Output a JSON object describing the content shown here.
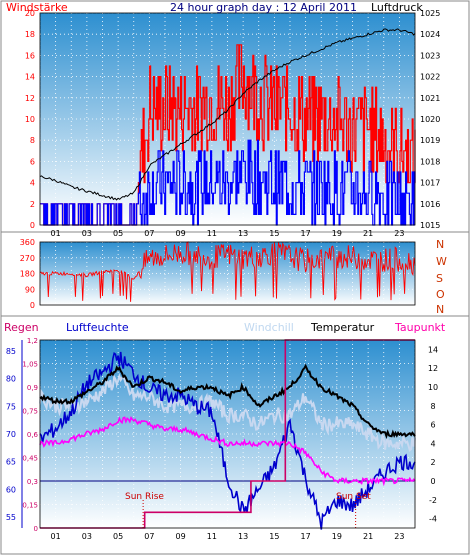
{
  "panel_top": {
    "title": "24 hour graph day : 12 April 2011",
    "left_label": "Windstärke",
    "right_label": "Luftdruck",
    "left_ticks": [
      "0",
      "2",
      "4",
      "6",
      "8",
      "10",
      "12",
      "14",
      "16",
      "18",
      "20"
    ],
    "right_ticks": [
      "1015",
      "1016",
      "1017",
      "1018",
      "1019",
      "1020",
      "1021",
      "1022",
      "1023",
      "1024",
      "1025"
    ]
  },
  "panel_mid": {
    "left_ticks": [
      "0",
      "90",
      "180",
      "270",
      "360"
    ],
    "direction_letters": [
      "N",
      "W",
      "S",
      "O",
      "N"
    ]
  },
  "panel_bottom": {
    "labels": {
      "regen": "Regen",
      "luftfeuchte": "Luftfeuchte",
      "windchill": "Windchill",
      "temperatur": "Temperatur",
      "taupunkt": "Taupunkt"
    },
    "humidity_ticks": [
      "55",
      "60",
      "65",
      "70",
      "75",
      "80",
      "85"
    ],
    "rain_ticks": [
      "0",
      "0,15",
      "0,3",
      "0,45",
      "0,6",
      "0,75",
      "0,9",
      "1,05",
      "1,2"
    ],
    "temp_ticks": [
      "-4",
      "-2",
      "0",
      "2",
      "4",
      "6",
      "8",
      "10",
      "12",
      "14"
    ],
    "sun_rise": "Sun Rise",
    "sun_set": "Sun Set"
  },
  "hour_ticks": [
    "01",
    "03",
    "05",
    "07",
    "09",
    "11",
    "13",
    "15",
    "17",
    "19",
    "21",
    "23"
  ],
  "colors": {
    "wind": "#ff0000",
    "gust": "#0000ff",
    "pressure": "#000000",
    "direction": "#ff0000",
    "humidity": "#0000cc",
    "temperature": "#000000",
    "windchill": "#c8d8f0",
    "dewpoint": "#ff00ff",
    "rain": "#cc0066",
    "axis_left": "#0000cc",
    "title": "#000080"
  },
  "chart_data": [
    {
      "type": "line",
      "title": "24 hour graph day : 12 April 2011",
      "x": [
        0,
        1,
        2,
        3,
        4,
        5,
        6,
        7,
        8,
        9,
        10,
        11,
        12,
        13,
        14,
        15,
        16,
        17,
        18,
        19,
        20,
        21,
        22,
        23,
        24
      ],
      "series": [
        {
          "name": "Windstärke",
          "axis": "left",
          "values": [
            1,
            1,
            1,
            0.5,
            1,
            1.5,
            2,
            11,
            11,
            11,
            11,
            12,
            11,
            14,
            12,
            11,
            11,
            10,
            10,
            10,
            9,
            9,
            8,
            7,
            6
          ]
        },
        {
          "name": "Luftdruck",
          "axis": "right",
          "values": [
            1017.3,
            1017.1,
            1016.8,
            1016.6,
            1016.4,
            1016.2,
            1016.5,
            1017.8,
            1018.3,
            1018.8,
            1019.3,
            1019.8,
            1020.4,
            1021.2,
            1021.8,
            1022.3,
            1022.7,
            1023.0,
            1023.3,
            1023.6,
            1023.8,
            1024.0,
            1024.2,
            1024.2,
            1024.0
          ]
        }
      ],
      "ylim_left": [
        0,
        20
      ],
      "ylim_right": [
        1015,
        1025
      ]
    },
    {
      "type": "line",
      "series": [
        {
          "name": "direction",
          "values": [
            180,
            180,
            180,
            170,
            190,
            200,
            150,
            270,
            280,
            300,
            290,
            270,
            290,
            270,
            280,
            300,
            280,
            250,
            270,
            280,
            270,
            260,
            260,
            260,
            240
          ]
        }
      ],
      "ylim": [
        0,
        360
      ]
    },
    {
      "type": "line",
      "series": [
        {
          "name": "Temperatur",
          "axis": "temp",
          "values": [
            9,
            8.5,
            8.5,
            9.5,
            10.5,
            12,
            10,
            11,
            10.5,
            9.5,
            10,
            10,
            9,
            10,
            8,
            9,
            10,
            12,
            10,
            9,
            8,
            6,
            5,
            5
          ]
        },
        {
          "name": "Windchill",
          "axis": "temp",
          "values": [
            9,
            8,
            8,
            8.5,
            9.5,
            11,
            9,
            9,
            8,
            8,
            8,
            8.5,
            7,
            7,
            6,
            7,
            7,
            9,
            6,
            6,
            6,
            5,
            4,
            4
          ]
        },
        {
          "name": "Taupunkt",
          "axis": "temp",
          "values": [
            4,
            4,
            4.5,
            5,
            5.5,
            6.5,
            6.5,
            6,
            5.5,
            5.5,
            5,
            4.5,
            4,
            4,
            4,
            4,
            4,
            3,
            1,
            0,
            0,
            0,
            0,
            0
          ]
        },
        {
          "name": "Luftfeuchte",
          "axis": "humidity",
          "values": [
            69,
            71,
            74,
            79,
            81,
            84,
            81,
            78,
            77,
            77,
            75,
            74,
            62,
            56,
            60,
            64,
            72,
            62,
            54,
            58,
            57,
            60,
            63,
            65
          ]
        }
      ],
      "ylim_temp": [
        -5,
        15
      ],
      "ylim_humidity": [
        53,
        87
      ],
      "ylim_rain": [
        0,
        1.2
      ]
    }
  ]
}
